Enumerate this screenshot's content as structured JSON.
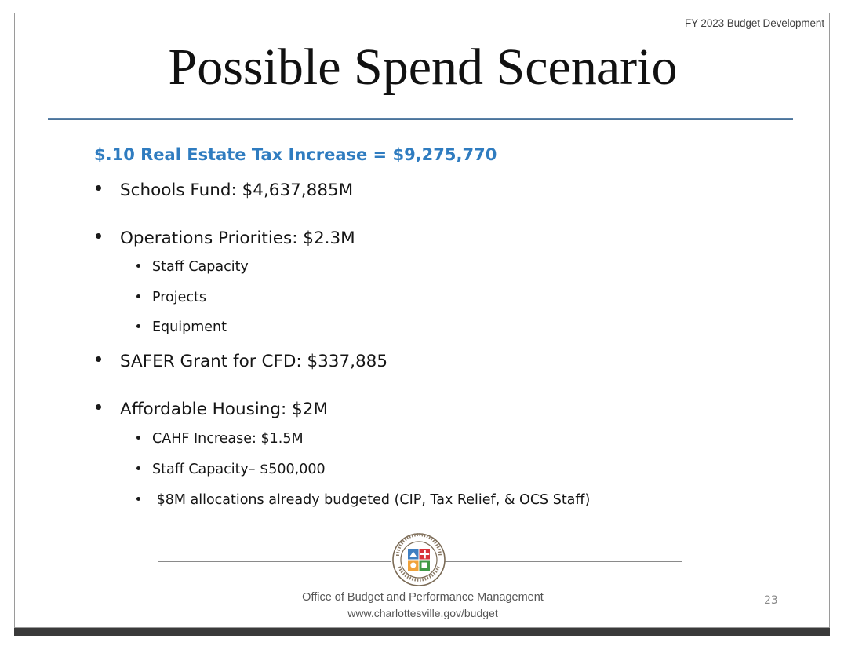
{
  "header": {
    "tag": "FY 2023 Budget Development"
  },
  "slide": {
    "title": "Possible Spend Scenario",
    "subheading": "$.10 Real Estate Tax Increase = $9,275,770",
    "bullets": [
      {
        "level": 1,
        "text": "Schools Fund: $4,637,885M"
      },
      {
        "level": 1,
        "text": "Operations Priorities: $2.3M"
      },
      {
        "level": 2,
        "text": "Staff Capacity"
      },
      {
        "level": 2,
        "text": "Projects"
      },
      {
        "level": 2,
        "text": "Equipment"
      },
      {
        "level": 1,
        "text": "SAFER Grant for CFD: $337,885"
      },
      {
        "level": 1,
        "text": "Affordable Housing: $2M"
      },
      {
        "level": 2,
        "text": "CAHF Increase: $1.5M"
      },
      {
        "level": 2,
        "text": "Staff Capacity– $500,000"
      },
      {
        "level": 2,
        "text": " $8M allocations already budgeted (CIP, Tax Relief, & OCS Staff)"
      }
    ],
    "page_number": "23"
  },
  "footer": {
    "office": "Office of Budget and Performance Management",
    "url": "www.charlottesville.gov/budget",
    "seal_text": "CHARLOTTESVILLE VIRGINIA 1762"
  },
  "colors": {
    "subheading": "#2f7cc0",
    "rule": "#5d86ad",
    "bottom_bar": "#3a3a3a"
  }
}
